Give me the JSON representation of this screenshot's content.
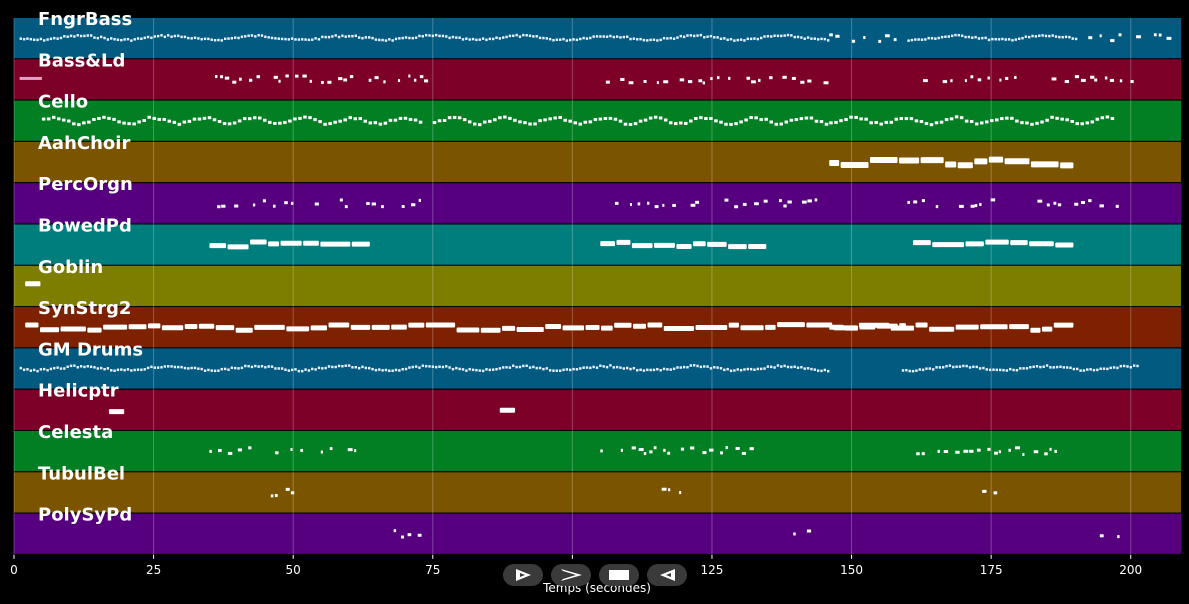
{
  "chart_data": {
    "type": "piano-roll",
    "x_label": "Temps (secondes)",
    "x_ticks": [
      0,
      25,
      50,
      75,
      100,
      125,
      150,
      175,
      200
    ],
    "x_range": [
      0,
      209
    ],
    "grid": true,
    "tracks": [
      {
        "name": "FngrBass",
        "color": "#025a81",
        "segments": [
          [
            1,
            146,
            "dense"
          ],
          [
            146,
            160,
            "sparse"
          ],
          [
            160,
            190,
            "dense"
          ],
          [
            190,
            207,
            "sparse"
          ]
        ]
      },
      {
        "name": "Bass&Ld",
        "color": "#7d0028",
        "segments": [
          [
            1,
            5,
            "pink"
          ],
          [
            36,
            75,
            "sparse"
          ],
          [
            106,
            146,
            "sparse"
          ],
          [
            161,
            200,
            "sparse"
          ]
        ]
      },
      {
        "name": "Cello",
        "color": "#017f22",
        "segments": [
          [
            5,
            73,
            "melody"
          ],
          [
            75,
            146,
            "melody"
          ],
          [
            146,
            197,
            "melody"
          ]
        ]
      },
      {
        "name": "AahChoir",
        "color": "#7b5400",
        "segments": [
          [
            146,
            190,
            "thick"
          ]
        ]
      },
      {
        "name": "PercOrgn",
        "color": "#56007f",
        "segments": [
          [
            35,
            75,
            "sparse"
          ],
          [
            105,
            146,
            "sparse"
          ],
          [
            160,
            200,
            "sparse"
          ]
        ]
      },
      {
        "name": "BowedPd",
        "color": "#007d7d",
        "segments": [
          [
            35,
            64,
            "long"
          ],
          [
            105,
            135,
            "long"
          ],
          [
            161,
            190,
            "long"
          ]
        ]
      },
      {
        "name": "Goblin",
        "color": "#7d7d00",
        "segments": [
          [
            2,
            5,
            "long"
          ]
        ]
      },
      {
        "name": "SynStrg2",
        "color": "#7e2100",
        "segments": [
          [
            2,
            190,
            "long"
          ],
          [
            146,
            160,
            "long"
          ]
        ]
      },
      {
        "name": "GM Drums",
        "color": "#025a81",
        "segments": [
          [
            1,
            146,
            "dense"
          ],
          [
            159,
            201,
            "dense"
          ]
        ]
      },
      {
        "name": "Helicptr",
        "color": "#7d0028",
        "segments": [
          [
            17,
            20,
            "long"
          ],
          [
            87,
            90,
            "long"
          ]
        ]
      },
      {
        "name": "Celesta",
        "color": "#017f22",
        "segments": [
          [
            35,
            62,
            "sparse"
          ],
          [
            105,
            132,
            "sparse"
          ],
          [
            160,
            188,
            "sparse"
          ]
        ]
      },
      {
        "name": "TubulBel",
        "color": "#7b5400",
        "segments": [
          [
            46,
            51,
            "sparse"
          ],
          [
            116,
            121,
            "sparse"
          ],
          [
            172,
            177,
            "sparse"
          ]
        ]
      },
      {
        "name": "PolySyPd",
        "color": "#56007f",
        "segments": [
          [
            68,
            73,
            "sparse"
          ],
          [
            138,
            143,
            "sparse"
          ],
          [
            193,
            198,
            "sparse"
          ]
        ]
      }
    ]
  },
  "controls": [
    {
      "name": "play-button",
      "icon": "play-outline-icon"
    },
    {
      "name": "fast-forward-button",
      "icon": "fast-forward-icon"
    },
    {
      "name": "stop-button",
      "icon": "stop-icon"
    },
    {
      "name": "rewind-button",
      "icon": "rewind-icon"
    }
  ]
}
